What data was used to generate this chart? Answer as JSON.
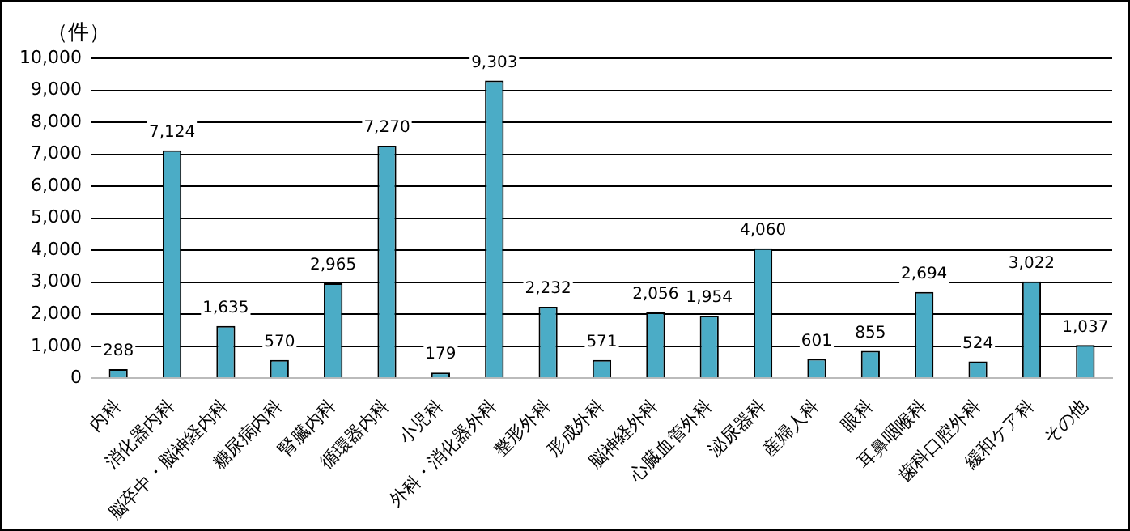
{
  "chart_data": {
    "type": "bar",
    "ylabel": "（件）",
    "categories": [
      "内科",
      "消化器内科",
      "脳卒中・脳神経内科",
      "糖尿病内科",
      "腎臓内科",
      "循環器内科",
      "小児科",
      "外科・消化器外科",
      "整形外科",
      "形成外科",
      "脳神経外科",
      "心臓血管外科",
      "泌尿器科",
      "産婦人科",
      "眼科",
      "耳鼻咽喉科",
      "歯科口腔外科",
      "緩和ケア科",
      "その他"
    ],
    "values": [
      288,
      7124,
      1635,
      570,
      2965,
      7270,
      179,
      9303,
      2232,
      571,
      2056,
      1954,
      4060,
      601,
      855,
      2694,
      524,
      3022,
      1037
    ],
    "value_labels": [
      "288",
      "7,124",
      "1,635",
      "570",
      "2,965",
      "7,270",
      "179",
      "9,303",
      "2,232",
      "571",
      "2,056",
      "1,954",
      "4,060",
      "601",
      "855",
      "2,694",
      "524",
      "3,022",
      "1,037"
    ],
    "color": "#4bacc6",
    "ylim": [
      0,
      10000
    ],
    "yticks": [
      0,
      {
        "value": 1000,
        "label": "1,000"
      },
      {
        "value": 2000,
        "label": "2,000"
      },
      {
        "value": 3000,
        "label": "3,000"
      },
      {
        "value": 4000,
        "label": "4,000"
      },
      {
        "value": 5000,
        "label": "5,000"
      },
      {
        "value": 6000,
        "label": "6,000"
      },
      {
        "value": 7000,
        "label": "7,000"
      },
      {
        "value": 8000,
        "label": "8,000"
      },
      {
        "value": 9000,
        "label": "9,000"
      },
      {
        "value": 10000,
        "label": "10,000"
      }
    ],
    "grid": "y",
    "legend": false
  }
}
